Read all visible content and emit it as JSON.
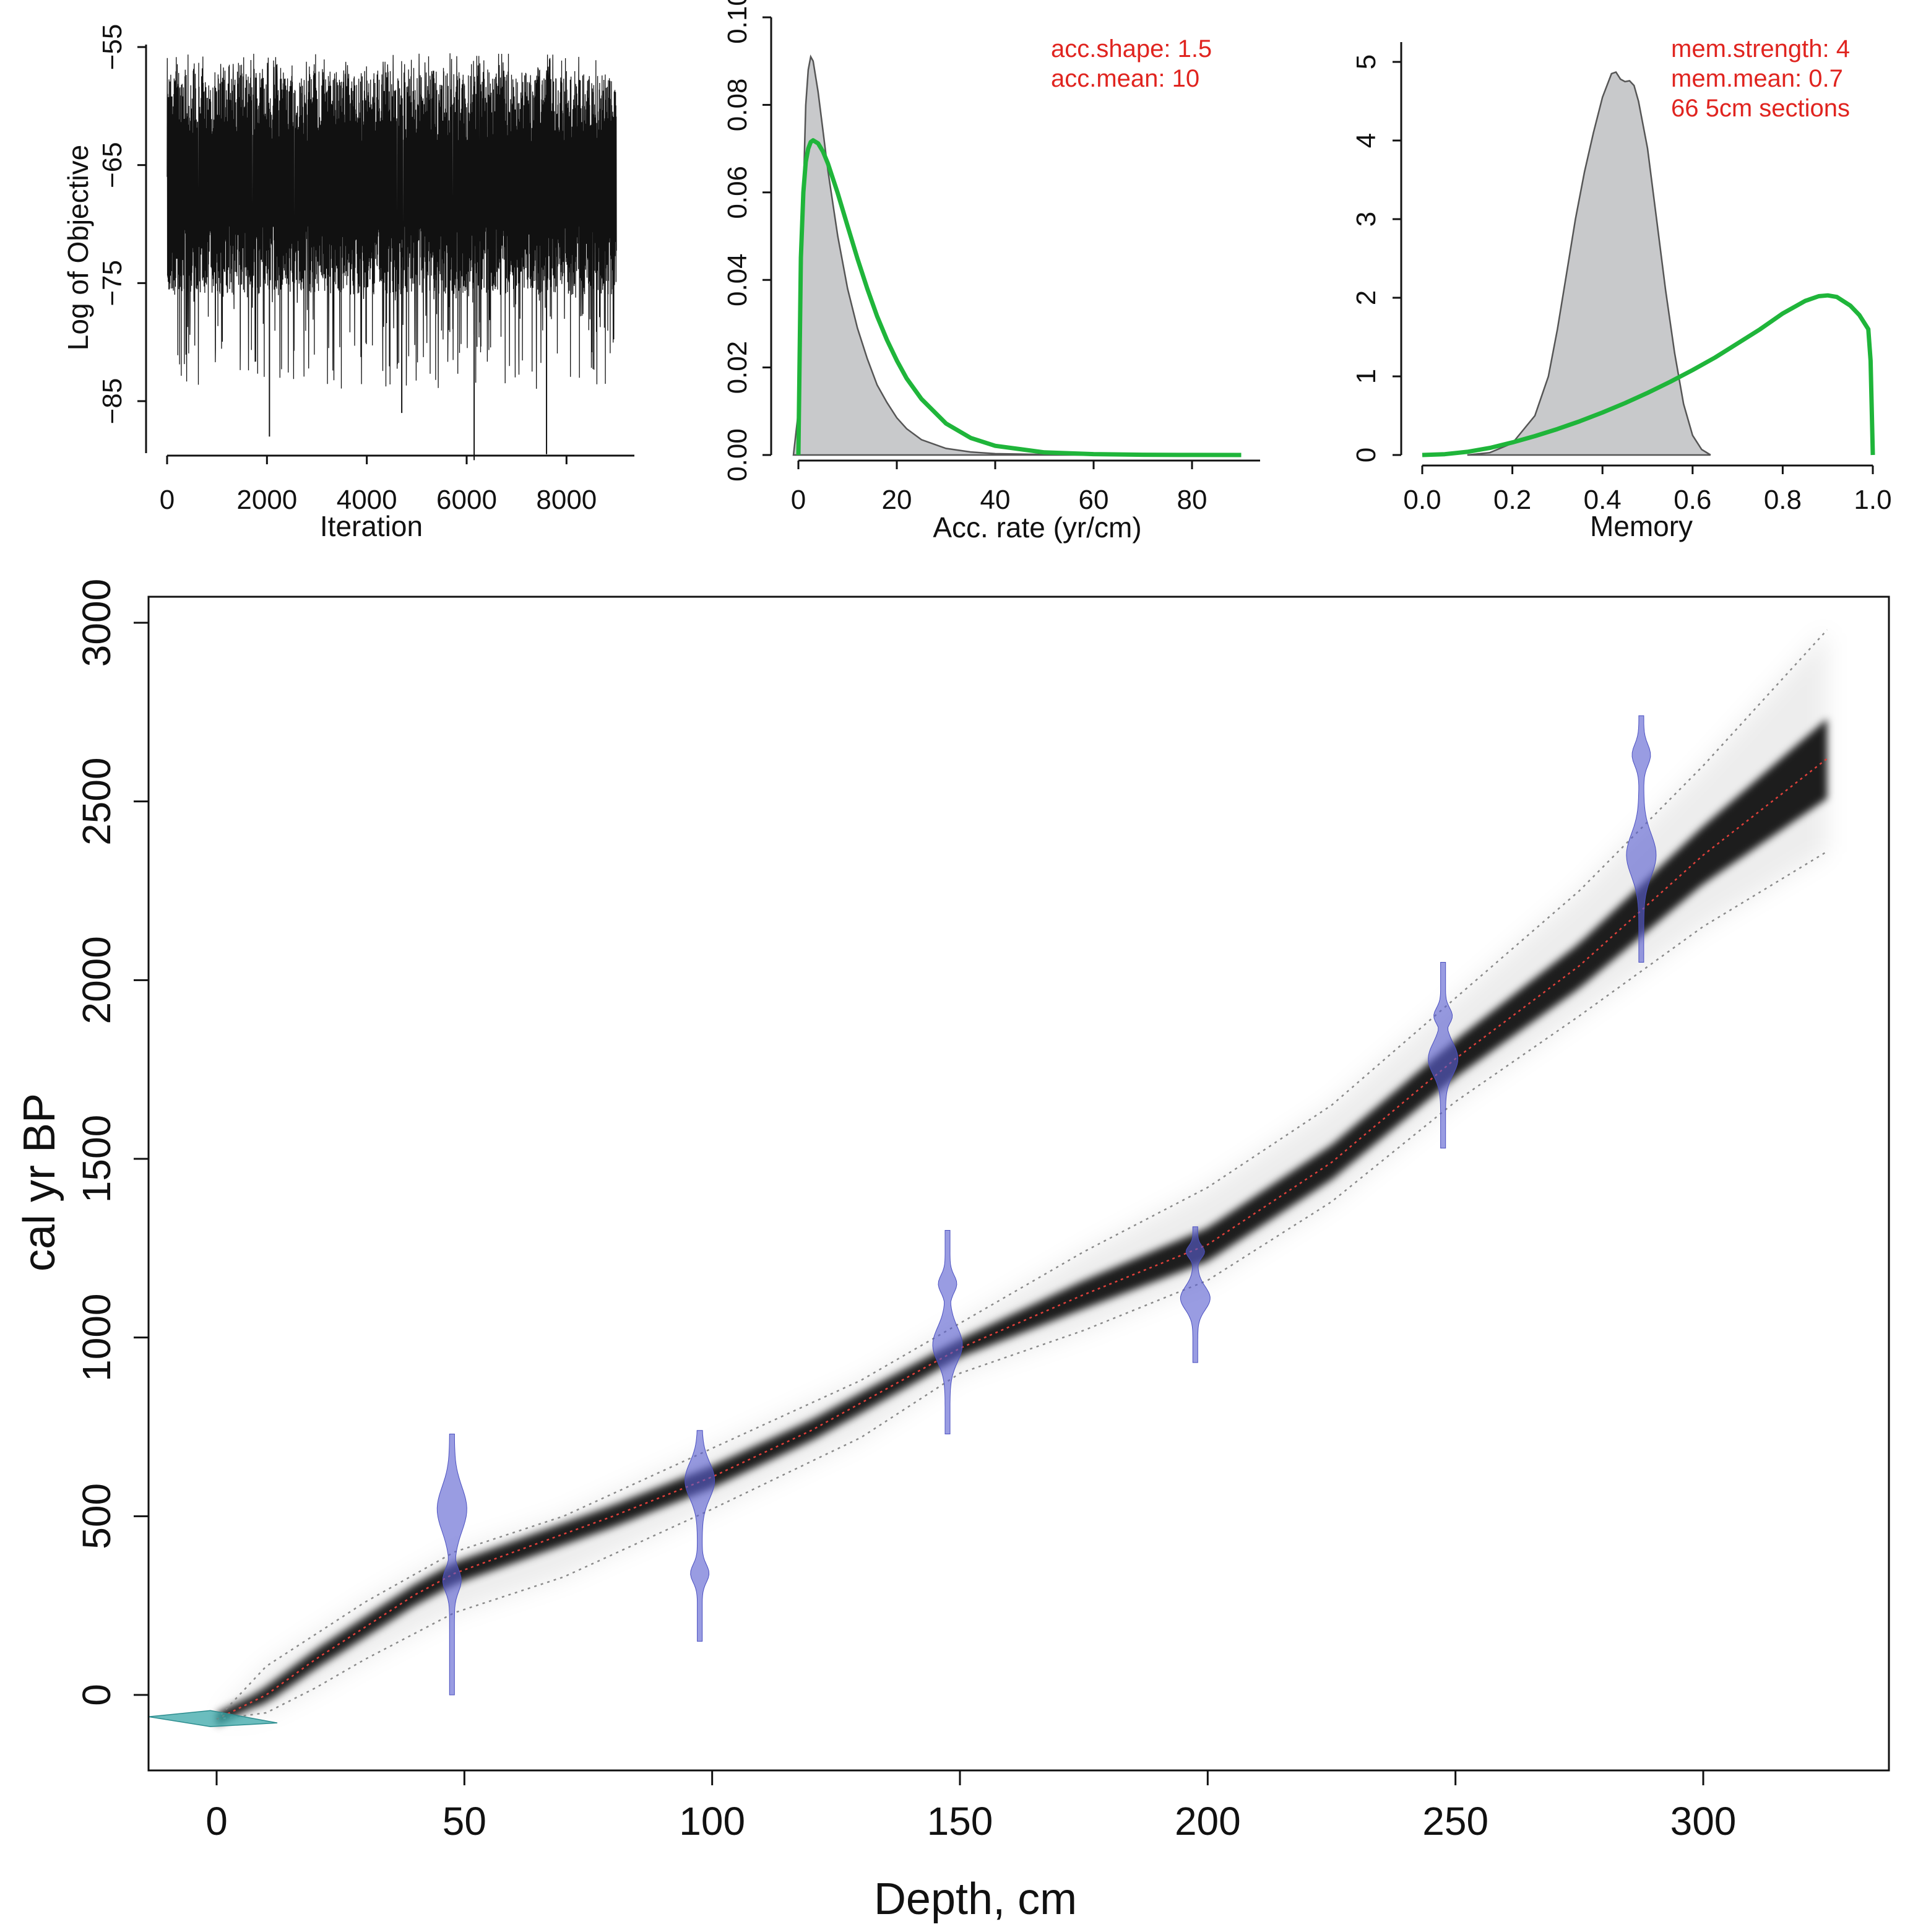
{
  "chart_data": [
    {
      "id": "iterations",
      "type": "line",
      "xlabel": "Iteration",
      "ylabel": "Log of Objective",
      "xlim": [
        0,
        9000
      ],
      "ylim": [
        -89,
        -55
      ],
      "x_ticks": [
        0,
        2000,
        4000,
        6000,
        8000
      ],
      "y_ticks": [
        -55,
        -65,
        -75,
        -85
      ],
      "series": [
        {
          "name": "log objective",
          "n_iterations": 9000,
          "typical_range": [
            -75,
            -57
          ],
          "min_spikes": [
            -89,
            -88,
            -87,
            -86
          ],
          "color": "#111111"
        }
      ]
    },
    {
      "id": "accumulation-rate",
      "type": "area",
      "xlabel": "Acc. rate (yr/cm)",
      "ylabel": "",
      "xlim": [
        0,
        90
      ],
      "ylim": [
        0,
        0.1
      ],
      "x_ticks": [
        0,
        20,
        40,
        60,
        80
      ],
      "y_ticks": [
        "0.00",
        "0.02",
        "0.04",
        "0.06",
        "0.08",
        "0.10"
      ],
      "annotations": [
        "acc.shape: 1.5",
        "acc.mean: 10"
      ],
      "series": [
        {
          "name": "posterior",
          "style": "filled-gray",
          "x": [
            -1,
            0,
            0.5,
            1,
            1.5,
            2,
            2.5,
            3,
            4,
            5,
            6,
            8,
            10,
            12,
            14,
            16,
            18,
            20,
            22,
            25,
            30,
            35,
            40,
            50,
            60,
            70,
            80,
            90
          ],
          "y": [
            0,
            0.01,
            0.03,
            0.06,
            0.08,
            0.088,
            0.091,
            0.09,
            0.083,
            0.074,
            0.065,
            0.05,
            0.038,
            0.029,
            0.022,
            0.016,
            0.012,
            0.0085,
            0.006,
            0.0035,
            0.0015,
            0.0007,
            0.0003,
            0.0001,
            4e-05,
            2e-05,
            1e-05,
            0
          ]
        },
        {
          "name": "prior",
          "style": "green-line",
          "x": [
            0,
            0.5,
            1,
            1.5,
            2,
            2.5,
            3,
            4,
            5,
            6,
            8,
            10,
            12,
            14,
            16,
            18,
            20,
            22,
            25,
            30,
            35,
            40,
            50,
            60,
            70,
            80,
            90
          ],
          "y": [
            0,
            0.045,
            0.06,
            0.067,
            0.07,
            0.0715,
            0.0719,
            0.0712,
            0.0693,
            0.0666,
            0.0598,
            0.0523,
            0.0449,
            0.038,
            0.0317,
            0.0263,
            0.0216,
            0.0175,
            0.0128,
            0.0072,
            0.0039,
            0.0021,
            0.0006,
            0.0002,
            5e-05,
            1e-05,
            0
          ]
        }
      ]
    },
    {
      "id": "memory",
      "type": "area",
      "xlabel": "Memory",
      "ylabel": "",
      "xlim": [
        0,
        1
      ],
      "ylim": [
        0,
        5.2
      ],
      "x_ticks": [
        "0.0",
        "0.2",
        "0.4",
        "0.6",
        "0.8",
        "1.0"
      ],
      "y_ticks": [
        0,
        1,
        2,
        3,
        4,
        5
      ],
      "annotations": [
        "mem.strength: 4",
        "mem.mean: 0.7",
        "66 5cm sections"
      ],
      "series": [
        {
          "name": "posterior",
          "style": "filled-gray",
          "x": [
            0.1,
            0.15,
            0.2,
            0.25,
            0.28,
            0.3,
            0.32,
            0.34,
            0.36,
            0.38,
            0.4,
            0.42,
            0.43,
            0.44,
            0.45,
            0.46,
            0.47,
            0.48,
            0.5,
            0.52,
            0.54,
            0.56,
            0.58,
            0.6,
            0.62,
            0.64
          ],
          "y": [
            0,
            0.03,
            0.15,
            0.5,
            1.0,
            1.6,
            2.3,
            3.0,
            3.6,
            4.1,
            4.55,
            4.85,
            4.87,
            4.78,
            4.75,
            4.76,
            4.7,
            4.5,
            3.9,
            3.0,
            2.1,
            1.3,
            0.65,
            0.25,
            0.07,
            0
          ]
        },
        {
          "name": "prior",
          "style": "green-line",
          "x": [
            0,
            0.05,
            0.1,
            0.15,
            0.2,
            0.25,
            0.3,
            0.35,
            0.4,
            0.45,
            0.5,
            0.55,
            0.6,
            0.65,
            0.7,
            0.75,
            0.8,
            0.85,
            0.88,
            0.9,
            0.92,
            0.95,
            0.97,
            0.99,
            0.995,
            1.0
          ],
          "y": [
            0,
            0.01,
            0.04,
            0.09,
            0.16,
            0.24,
            0.33,
            0.43,
            0.54,
            0.66,
            0.79,
            0.93,
            1.08,
            1.24,
            1.42,
            1.6,
            1.8,
            1.96,
            2.02,
            2.03,
            2.01,
            1.9,
            1.78,
            1.6,
            1.2,
            0
          ]
        }
      ]
    },
    {
      "id": "age-depth",
      "type": "line",
      "xlabel": "Depth, cm",
      "ylabel": "cal yr BP",
      "xlim": [
        -13,
        338
      ],
      "ylim": [
        -220,
        3050
      ],
      "x_ticks": [
        0,
        50,
        100,
        150,
        200,
        250,
        300
      ],
      "y_ticks": [
        0,
        500,
        1000,
        1500,
        2000,
        2500,
        3000
      ],
      "series": [
        {
          "name": "mean age model",
          "style": "red-dotted",
          "x": [
            0,
            10,
            20,
            30,
            40,
            48,
            60,
            80,
            100,
            120,
            150,
            175,
            200,
            225,
            250,
            275,
            300,
            325
          ],
          "y": [
            -68,
            0,
            100,
            190,
            280,
            340,
            400,
            500,
            610,
            740,
            970,
            1120,
            1260,
            1490,
            1780,
            2040,
            2350,
            2620
          ]
        },
        {
          "name": "upper 95% range",
          "style": "gray-dotted",
          "x": [
            0,
            10,
            20,
            30,
            48,
            70,
            100,
            130,
            150,
            175,
            200,
            225,
            250,
            275,
            300,
            325
          ],
          "y": [
            -68,
            80,
            170,
            260,
            400,
            500,
            690,
            880,
            1040,
            1240,
            1420,
            1650,
            1950,
            2250,
            2600,
            2980
          ]
        },
        {
          "name": "lower 95% range",
          "style": "gray-dotted",
          "x": [
            0,
            10,
            20,
            30,
            48,
            70,
            100,
            130,
            150,
            175,
            200,
            225,
            250,
            275,
            300,
            325
          ],
          "y": [
            -68,
            -50,
            20,
            100,
            230,
            330,
            520,
            720,
            900,
            1020,
            1160,
            1380,
            1660,
            1900,
            2150,
            2360
          ]
        }
      ],
      "calibrated_dates": [
        {
          "depth": 0,
          "min": -85,
          "max": -50,
          "peak": -68,
          "color": "teal",
          "shape": "surface"
        },
        {
          "depth": 47.5,
          "min": 0,
          "max": 730,
          "peak": 520,
          "secondary_peak": 320,
          "color": "blue"
        },
        {
          "depth": 97.5,
          "min": 150,
          "max": 740,
          "peak": 600,
          "secondary_peak": 340,
          "color": "blue"
        },
        {
          "depth": 147.5,
          "min": 730,
          "max": 1300,
          "peak": 980,
          "secondary_peak": 1150,
          "color": "blue"
        },
        {
          "depth": 197.5,
          "min": 930,
          "max": 1310,
          "peak": 1110,
          "secondary_peak": 1240,
          "color": "blue"
        },
        {
          "depth": 247.5,
          "min": 1530,
          "max": 2050,
          "peak": 1780,
          "secondary_peak": 1900,
          "color": "blue"
        },
        {
          "depth": 287.5,
          "min": 2050,
          "max": 2740,
          "peak": 2350,
          "secondary_peak": 2630,
          "color": "blue"
        }
      ]
    }
  ]
}
